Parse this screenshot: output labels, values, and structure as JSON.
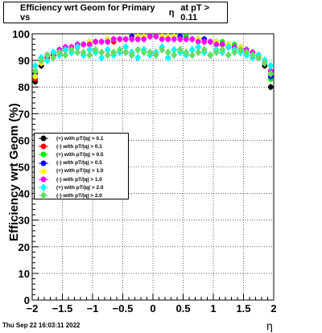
{
  "title": {
    "main": "Efficiency wrt Geom for Primary vs",
    "eta": "η",
    "cut": "at pT > 0.11"
  },
  "timestamp": "Thu Sep 22 16:03:11 2022",
  "chart_data": {
    "type": "scatter",
    "xlabel": "η",
    "ylabel": "Efficiency wrt Geom (%)",
    "xlim": [
      -2,
      2
    ],
    "ylim": [
      0,
      100
    ],
    "x_ticks": [
      "−2",
      "−1.5",
      "−1",
      "−0.5",
      "0",
      "0.5",
      "1",
      "1.5",
      "2"
    ],
    "y_ticks": [
      "0",
      "10",
      "20",
      "30",
      "40",
      "50",
      "60",
      "70",
      "80",
      "90",
      "100"
    ],
    "grid": true,
    "legend_position": "left-middle",
    "x": [
      -1.95,
      -1.85,
      -1.75,
      -1.65,
      -1.55,
      -1.45,
      -1.35,
      -1.25,
      -1.15,
      -1.05,
      -0.95,
      -0.85,
      -0.75,
      -0.65,
      -0.55,
      -0.45,
      -0.35,
      -0.25,
      -0.15,
      -0.05,
      0.05,
      0.15,
      0.25,
      0.35,
      0.45,
      0.55,
      0.65,
      0.75,
      0.85,
      0.95,
      1.05,
      1.15,
      1.25,
      1.35,
      1.45,
      1.55,
      1.65,
      1.75,
      1.85,
      1.95
    ],
    "series": [
      {
        "name": "(+) with pT/|q| > 0.1",
        "color": "#000000",
        "marker": "circle",
        "values": [
          82,
          88,
          91,
          92,
          93,
          94,
          95,
          95,
          96,
          96,
          97,
          97,
          97,
          98,
          98,
          98,
          98,
          98,
          99,
          99,
          99,
          99,
          98,
          99,
          99,
          98,
          98,
          98,
          97,
          97,
          97,
          96,
          96,
          95,
          95,
          94,
          93,
          91,
          88,
          80
        ]
      },
      {
        "name": "(-) with pT/|q| > 0.1",
        "color": "#ff0000",
        "marker": "circle",
        "values": [
          83,
          89,
          91,
          92,
          93,
          94,
          95,
          95,
          96,
          96,
          97,
          97,
          97,
          97,
          98,
          98,
          98,
          98,
          98,
          99,
          99,
          98,
          98,
          98,
          98,
          98,
          98,
          97,
          97,
          97,
          96,
          96,
          95,
          95,
          94,
          94,
          93,
          91,
          89,
          84
        ]
      },
      {
        "name": "(+) with pT/|q| > 0.5",
        "color": "#00ee00",
        "marker": "circle",
        "values": [
          84,
          89,
          92,
          93,
          94,
          95,
          95,
          96,
          96,
          97,
          97,
          97,
          98,
          98,
          98,
          98,
          99,
          99,
          99,
          99,
          99,
          99,
          99,
          99,
          99,
          99,
          98,
          98,
          98,
          97,
          97,
          97,
          96,
          96,
          95,
          94,
          93,
          92,
          90,
          83
        ]
      },
      {
        "name": "(-) with pT/|q| > 0.5",
        "color": "#0000ff",
        "marker": "circle",
        "values": [
          85,
          90,
          92,
          93,
          94,
          95,
          95,
          96,
          96,
          97,
          97,
          97,
          98,
          98,
          98,
          98,
          99,
          99,
          99,
          99,
          99,
          99,
          99,
          99,
          99,
          98,
          98,
          98,
          98,
          97,
          97,
          96,
          96,
          95,
          95,
          94,
          93,
          92,
          89,
          84
        ]
      },
      {
        "name": "(+) with pT/|q| > 1.0",
        "color": "#ffff00",
        "marker": "circle",
        "values": [
          84,
          89,
          92,
          93,
          94,
          95,
          95,
          96,
          96,
          97,
          97,
          97,
          98,
          98,
          98,
          98,
          98,
          99,
          99,
          99,
          99,
          99,
          99,
          99,
          98,
          98,
          98,
          98,
          97,
          97,
          97,
          96,
          96,
          95,
          95,
          94,
          93,
          92,
          90,
          85
        ]
      },
      {
        "name": "(-) with pT/|q| > 1.0",
        "color": "#ff00ff",
        "marker": "circle",
        "values": [
          86,
          90,
          92,
          93,
          94,
          95,
          95,
          96,
          96,
          96,
          97,
          97,
          97,
          98,
          98,
          98,
          98,
          98,
          98,
          99,
          99,
          98,
          98,
          98,
          98,
          98,
          98,
          97,
          97,
          97,
          96,
          96,
          95,
          95,
          94,
          94,
          93,
          92,
          90,
          86
        ]
      },
      {
        "name": "(+) with pT/|q| > 2.0",
        "color": "#00ffff",
        "marker": "diamond",
        "values": [
          88,
          91,
          90,
          93,
          92,
          94,
          93,
          95,
          92,
          94,
          93,
          91,
          94,
          92,
          93,
          95,
          93,
          91,
          94,
          92,
          93,
          95,
          91,
          94,
          93,
          92,
          94,
          95,
          93,
          92,
          94,
          93,
          95,
          94,
          93,
          92,
          91,
          92,
          90,
          88
        ]
      },
      {
        "name": "(-) with pT/|q| > 2.0",
        "color": "#66dd66",
        "marker": "diamond",
        "values": [
          86,
          90,
          92,
          91,
          93,
          92,
          94,
          93,
          93,
          92,
          94,
          93,
          92,
          93,
          94,
          93,
          92,
          94,
          93,
          93,
          92,
          94,
          93,
          92,
          94,
          93,
          92,
          93,
          94,
          92,
          93,
          94,
          92,
          93,
          94,
          93,
          92,
          91,
          89,
          85
        ]
      }
    ]
  }
}
